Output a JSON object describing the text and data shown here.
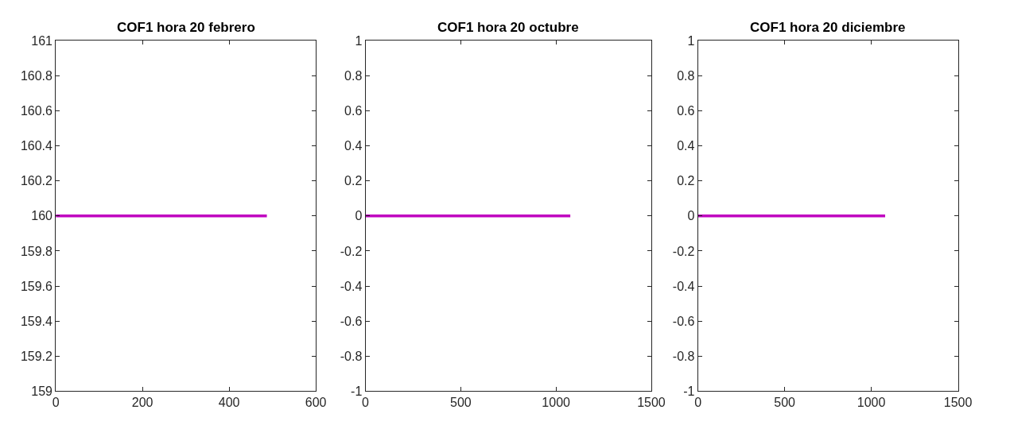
{
  "chart_data": [
    {
      "type": "line",
      "title": "COF1 hora 20 febrero",
      "x": [
        0,
        487
      ],
      "series": [
        {
          "color": "#c000c0",
          "values": [
            160,
            160
          ]
        }
      ],
      "xlim": [
        0,
        600
      ],
      "xticks": [
        0,
        200,
        400,
        600
      ],
      "ylim": [
        159,
        161
      ],
      "yticks": [
        159,
        159.2,
        159.4,
        159.6,
        159.8,
        160,
        160.2,
        160.4,
        160.6,
        160.8,
        161
      ],
      "line_style": "solid"
    },
    {
      "type": "line",
      "title": "COF1 hora 20 octubre",
      "x": [
        0,
        1075
      ],
      "series": [
        {
          "color": "#c000c0",
          "values": [
            0,
            0
          ]
        }
      ],
      "xlim": [
        0,
        1500
      ],
      "xticks": [
        0,
        500,
        1000,
        1500
      ],
      "ylim": [
        -1,
        1
      ],
      "yticks": [
        -1,
        -0.8,
        -0.6,
        -0.4,
        -0.2,
        0,
        0.2,
        0.4,
        0.6,
        0.8,
        1
      ],
      "line_style": "solid"
    },
    {
      "type": "line",
      "title": "COF1 hora 20 diciembre",
      "x": [
        0,
        1080
      ],
      "series": [
        {
          "color": "#c000c0",
          "values": [
            0,
            0
          ]
        }
      ],
      "xlim": [
        0,
        1500
      ],
      "xticks": [
        0,
        500,
        1000,
        1500
      ],
      "ylim": [
        -1,
        1
      ],
      "yticks": [
        -1,
        -0.8,
        -0.6,
        -0.4,
        -0.2,
        0,
        0.2,
        0.4,
        0.6,
        0.8,
        1
      ],
      "line_style": "solid"
    }
  ]
}
